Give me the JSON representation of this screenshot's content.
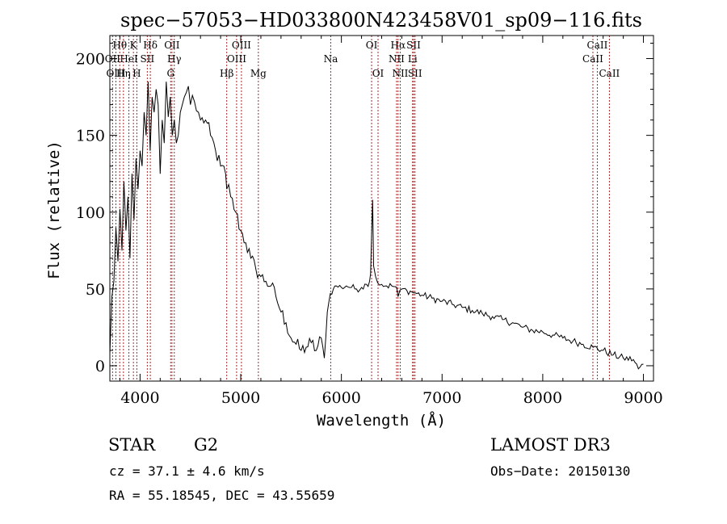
{
  "chart_data": {
    "type": "line",
    "title": "spec−57053−HD033800N423458V01_sp09−116.fits",
    "xlabel": "Wavelength (Å)",
    "ylabel": "Flux (relative)",
    "xlim": [
      3700,
      9100
    ],
    "ylim": [
      -10,
      215
    ],
    "x_ticks": [
      4000,
      5000,
      6000,
      7000,
      8000,
      9000
    ],
    "x_tick_labels": [
      "4000",
      "5000",
      "6000",
      "7000",
      "8000",
      "9000"
    ],
    "y_ticks": [
      0,
      50,
      100,
      150,
      200
    ],
    "y_tick_labels": [
      "0",
      "50",
      "100",
      "150",
      "200"
    ],
    "series": [
      {
        "name": "flux",
        "x": [
          3700,
          3720,
          3740,
          3760,
          3780,
          3800,
          3820,
          3840,
          3860,
          3880,
          3900,
          3920,
          3940,
          3960,
          3980,
          4000,
          4020,
          4040,
          4060,
          4080,
          4100,
          4120,
          4140,
          4160,
          4180,
          4200,
          4220,
          4240,
          4260,
          4280,
          4300,
          4320,
          4340,
          4360,
          4380,
          4400,
          4420,
          4440,
          4460,
          4480,
          4500,
          4520,
          4540,
          4560,
          4580,
          4600,
          4650,
          4700,
          4750,
          4800,
          4850,
          4861,
          4880,
          4900,
          4950,
          5000,
          5050,
          5100,
          5150,
          5200,
          5250,
          5300,
          5350,
          5400,
          5450,
          5500,
          5550,
          5600,
          5650,
          5700,
          5750,
          5800,
          5830,
          5860,
          5890,
          5920,
          5950,
          6000,
          6050,
          6100,
          6150,
          6200,
          6250,
          6280,
          6290,
          6300,
          6310,
          6320,
          6340,
          6360,
          6400,
          6450,
          6500,
          6550,
          6563,
          6600,
          6650,
          6700,
          6750,
          6800,
          6900,
          7000,
          7100,
          7200,
          7300,
          7400,
          7500,
          7600,
          7700,
          7800,
          7900,
          8000,
          8100,
          8200,
          8300,
          8400,
          8500,
          8600,
          8700,
          8800,
          8900,
          8950,
          9000
        ],
        "y": [
          8,
          45,
          55,
          90,
          68,
          102,
          75,
          120,
          88,
          110,
          70,
          125,
          95,
          135,
          115,
          140,
          130,
          165,
          150,
          185,
          140,
          175,
          165,
          180,
          170,
          125,
          160,
          145,
          185,
          162,
          175,
          150,
          160,
          145,
          150,
          165,
          170,
          175,
          178,
          182,
          170,
          176,
          172,
          166,
          165,
          160,
          160,
          150,
          140,
          130,
          125,
          115,
          118,
          110,
          100,
          88,
          80,
          70,
          63,
          58,
          55,
          52,
          45,
          35,
          28,
          18,
          14,
          10,
          12,
          15,
          10,
          18,
          5,
          35,
          47,
          50,
          52,
          51,
          52,
          51,
          50,
          51,
          53,
          55,
          60,
          85,
          108,
          65,
          58,
          54,
          53,
          52,
          52,
          51,
          45,
          50,
          49,
          48,
          47,
          46,
          44,
          42,
          40,
          38,
          36,
          34,
          32,
          30,
          28,
          25,
          23,
          22,
          20,
          18,
          16,
          14,
          12,
          10,
          7,
          5,
          4,
          -2,
          1
        ]
      }
    ],
    "annotations": [
      {
        "label": "Hθ",
        "wavelength": 3798,
        "row": 1
      },
      {
        "label": "OII",
        "wavelength": 3727,
        "row": 2
      },
      {
        "label": "OIII",
        "wavelength": 3760,
        "row": 3
      },
      {
        "label": "HeI",
        "wavelength": 3889,
        "row": 2
      },
      {
        "label": "Hη",
        "wavelength": 3835,
        "row": 3
      },
      {
        "label": "K",
        "wavelength": 3934,
        "row": 1
      },
      {
        "label": "H",
        "wavelength": 3968,
        "row": 3
      },
      {
        "label": "SII",
        "wavelength": 4072,
        "row": 2
      },
      {
        "label": "Hδ",
        "wavelength": 4102,
        "row": 1
      },
      {
        "label": "OII",
        "wavelength": 4317,
        "row": 1
      },
      {
        "label": "Hγ",
        "wavelength": 4340,
        "row": 2
      },
      {
        "label": "G",
        "wavelength": 4304,
        "row": 3
      },
      {
        "label": "Hβ",
        "wavelength": 4861,
        "row": 3
      },
      {
        "label": "OIII",
        "wavelength": 4959,
        "row": 2
      },
      {
        "label": "OIII",
        "wavelength": 5007,
        "row": 1
      },
      {
        "label": "Mg",
        "wavelength": 5175,
        "row": 3
      },
      {
        "label": "Na",
        "wavelength": 5894,
        "row": 2
      },
      {
        "label": "OI",
        "wavelength": 6300,
        "row": 1
      },
      {
        "label": "OI",
        "wavelength": 6364,
        "row": 3
      },
      {
        "label": "Hα",
        "wavelength": 6563,
        "row": 1
      },
      {
        "label": "NII",
        "wavelength": 6548,
        "row": 2
      },
      {
        "label": "NII",
        "wavelength": 6584,
        "row": 3
      },
      {
        "label": "SII",
        "wavelength": 6717,
        "row": 1
      },
      {
        "label": "Li",
        "wavelength": 6707,
        "row": 2
      },
      {
        "label": "SII",
        "wavelength": 6731,
        "row": 3
      },
      {
        "label": "CaII",
        "wavelength": 8542,
        "row": 1
      },
      {
        "label": "CaII",
        "wavelength": 8498,
        "row": 2
      },
      {
        "label": "CaII",
        "wavelength": 8662,
        "row": 3
      }
    ]
  },
  "info": {
    "object_class": "STAR",
    "subclass": "G2",
    "survey": "LAMOST DR3",
    "redshift": "cz = 37.1 ± 4.6 km/s",
    "obs_date": "Obs−Date: 20150130",
    "coords": "RA =  55.18545, DEC =  43.55659"
  },
  "colors": {
    "spectrum": "#000000",
    "line_markers": "#a52a2a",
    "background": "#ffffff"
  }
}
